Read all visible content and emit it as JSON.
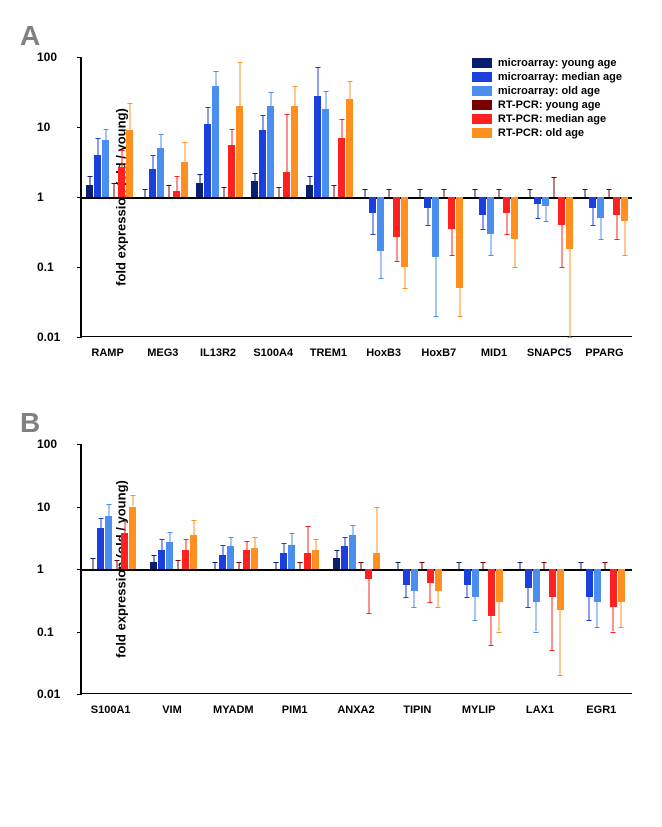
{
  "legend": [
    {
      "label": "microarray: young age",
      "color": "#0a1e6e"
    },
    {
      "label": "microarray: median age",
      "color": "#1a3fdc"
    },
    {
      "label": "microarray: old age",
      "color": "#4a8ff0"
    },
    {
      "label": "RT-PCR: young age",
      "color": "#7a0000"
    },
    {
      "label": "RT-PCR: median age",
      "color": "#ff2020"
    },
    {
      "label": "RT-PCR: old age",
      "color": "#ff9020"
    }
  ],
  "panelA": {
    "label": "A",
    "ylabel": "fold expression (old / young)",
    "ylim": [
      0.01,
      100
    ],
    "yticks": [
      0.01,
      0.1,
      1,
      10,
      100
    ],
    "genes": [
      "RAMP",
      "MEG3",
      "IL13R2",
      "S100A4",
      "TREM1",
      "HoxB3",
      "HoxB7",
      "MID1",
      "SNAPC5",
      "PPARG"
    ],
    "data": [
      {
        "vals": [
          1.5,
          4,
          6.5,
          1,
          2.7,
          9
        ],
        "err": [
          0.5,
          3,
          3,
          0.6,
          2,
          13
        ]
      },
      {
        "vals": [
          1,
          2.5,
          5,
          1,
          1.2,
          3.2
        ],
        "err": [
          0.3,
          1.5,
          3,
          0.5,
          0.8,
          3
        ]
      },
      {
        "vals": [
          1.6,
          11,
          38,
          1,
          5.5,
          20
        ],
        "err": [
          0.5,
          8,
          25,
          0.4,
          4,
          65
        ]
      },
      {
        "vals": [
          1.7,
          9,
          20,
          1,
          2.3,
          20
        ],
        "err": [
          0.5,
          6,
          12,
          0.4,
          13,
          18
        ]
      },
      {
        "vals": [
          1.5,
          28,
          18,
          1,
          7,
          25
        ],
        "err": [
          0.5,
          45,
          15,
          0.5,
          6,
          20
        ]
      },
      {
        "vals": [
          1,
          0.6,
          0.17,
          1,
          0.27,
          0.1
        ],
        "err": [
          0.3,
          0.3,
          0.1,
          0.3,
          0.15,
          0.05
        ]
      },
      {
        "vals": [
          1,
          0.7,
          0.14,
          1,
          0.35,
          0.05
        ],
        "err": [
          0.3,
          0.3,
          0.12,
          0.3,
          0.2,
          0.03
        ]
      },
      {
        "vals": [
          1,
          0.55,
          0.3,
          1,
          0.6,
          0.25
        ],
        "err": [
          0.3,
          0.2,
          0.15,
          0.3,
          0.3,
          0.15
        ]
      },
      {
        "vals": [
          1,
          0.8,
          0.75,
          1,
          0.4,
          0.18
        ],
        "err": [
          0.3,
          0.3,
          0.3,
          0.9,
          0.3,
          0.17
        ]
      },
      {
        "vals": [
          1,
          0.7,
          0.5,
          1,
          0.55,
          0.45
        ],
        "err": [
          0.3,
          0.3,
          0.25,
          0.3,
          0.3,
          0.3
        ]
      }
    ]
  },
  "panelB": {
    "label": "B",
    "ylabel": "fold expression (old / young)",
    "ylim": [
      0.01,
      100
    ],
    "yticks": [
      0.01,
      0.1,
      1,
      10,
      100
    ],
    "genes": [
      "S100A1",
      "VIM",
      "MYADM",
      "PIM1",
      "ANXA2",
      "TIPIN",
      "MYLIP",
      "LAX1",
      "EGR1"
    ],
    "data": [
      {
        "vals": [
          1,
          4.5,
          7,
          1,
          3.8,
          10
        ],
        "err": [
          0.5,
          2,
          4,
          0.4,
          2,
          5
        ]
      },
      {
        "vals": [
          1.3,
          2,
          2.7,
          1,
          2,
          3.5
        ],
        "err": [
          0.4,
          1,
          1.2,
          0.4,
          1,
          2.5
        ]
      },
      {
        "vals": [
          1,
          1.7,
          2.3,
          1,
          2,
          2.2
        ],
        "err": [
          0.3,
          0.7,
          1,
          0.3,
          0.8,
          1
        ]
      },
      {
        "vals": [
          1,
          1.8,
          2.4,
          1,
          1.8,
          2
        ],
        "err": [
          0.3,
          0.8,
          1.3,
          0.3,
          3,
          1
        ]
      },
      {
        "vals": [
          1.5,
          2.3,
          3.5,
          1,
          0.7,
          1.8
        ],
        "err": [
          0.5,
          1,
          1.5,
          0.3,
          0.5,
          8
        ]
      },
      {
        "vals": [
          1,
          0.55,
          0.45,
          1,
          0.6,
          0.45
        ],
        "err": [
          0.3,
          0.2,
          0.2,
          0.3,
          0.3,
          0.2
        ]
      },
      {
        "vals": [
          1,
          0.55,
          0.35,
          1,
          0.18,
          0.3
        ],
        "err": [
          0.3,
          0.2,
          0.2,
          0.3,
          0.12,
          0.2
        ]
      },
      {
        "vals": [
          1,
          0.5,
          0.3,
          1,
          0.35,
          0.22
        ],
        "err": [
          0.3,
          0.25,
          0.2,
          0.3,
          0.3,
          0.2
        ]
      },
      {
        "vals": [
          1,
          0.35,
          0.3,
          1,
          0.25,
          0.3
        ],
        "err": [
          0.3,
          0.2,
          0.18,
          0.3,
          0.15,
          0.18
        ]
      }
    ]
  }
}
